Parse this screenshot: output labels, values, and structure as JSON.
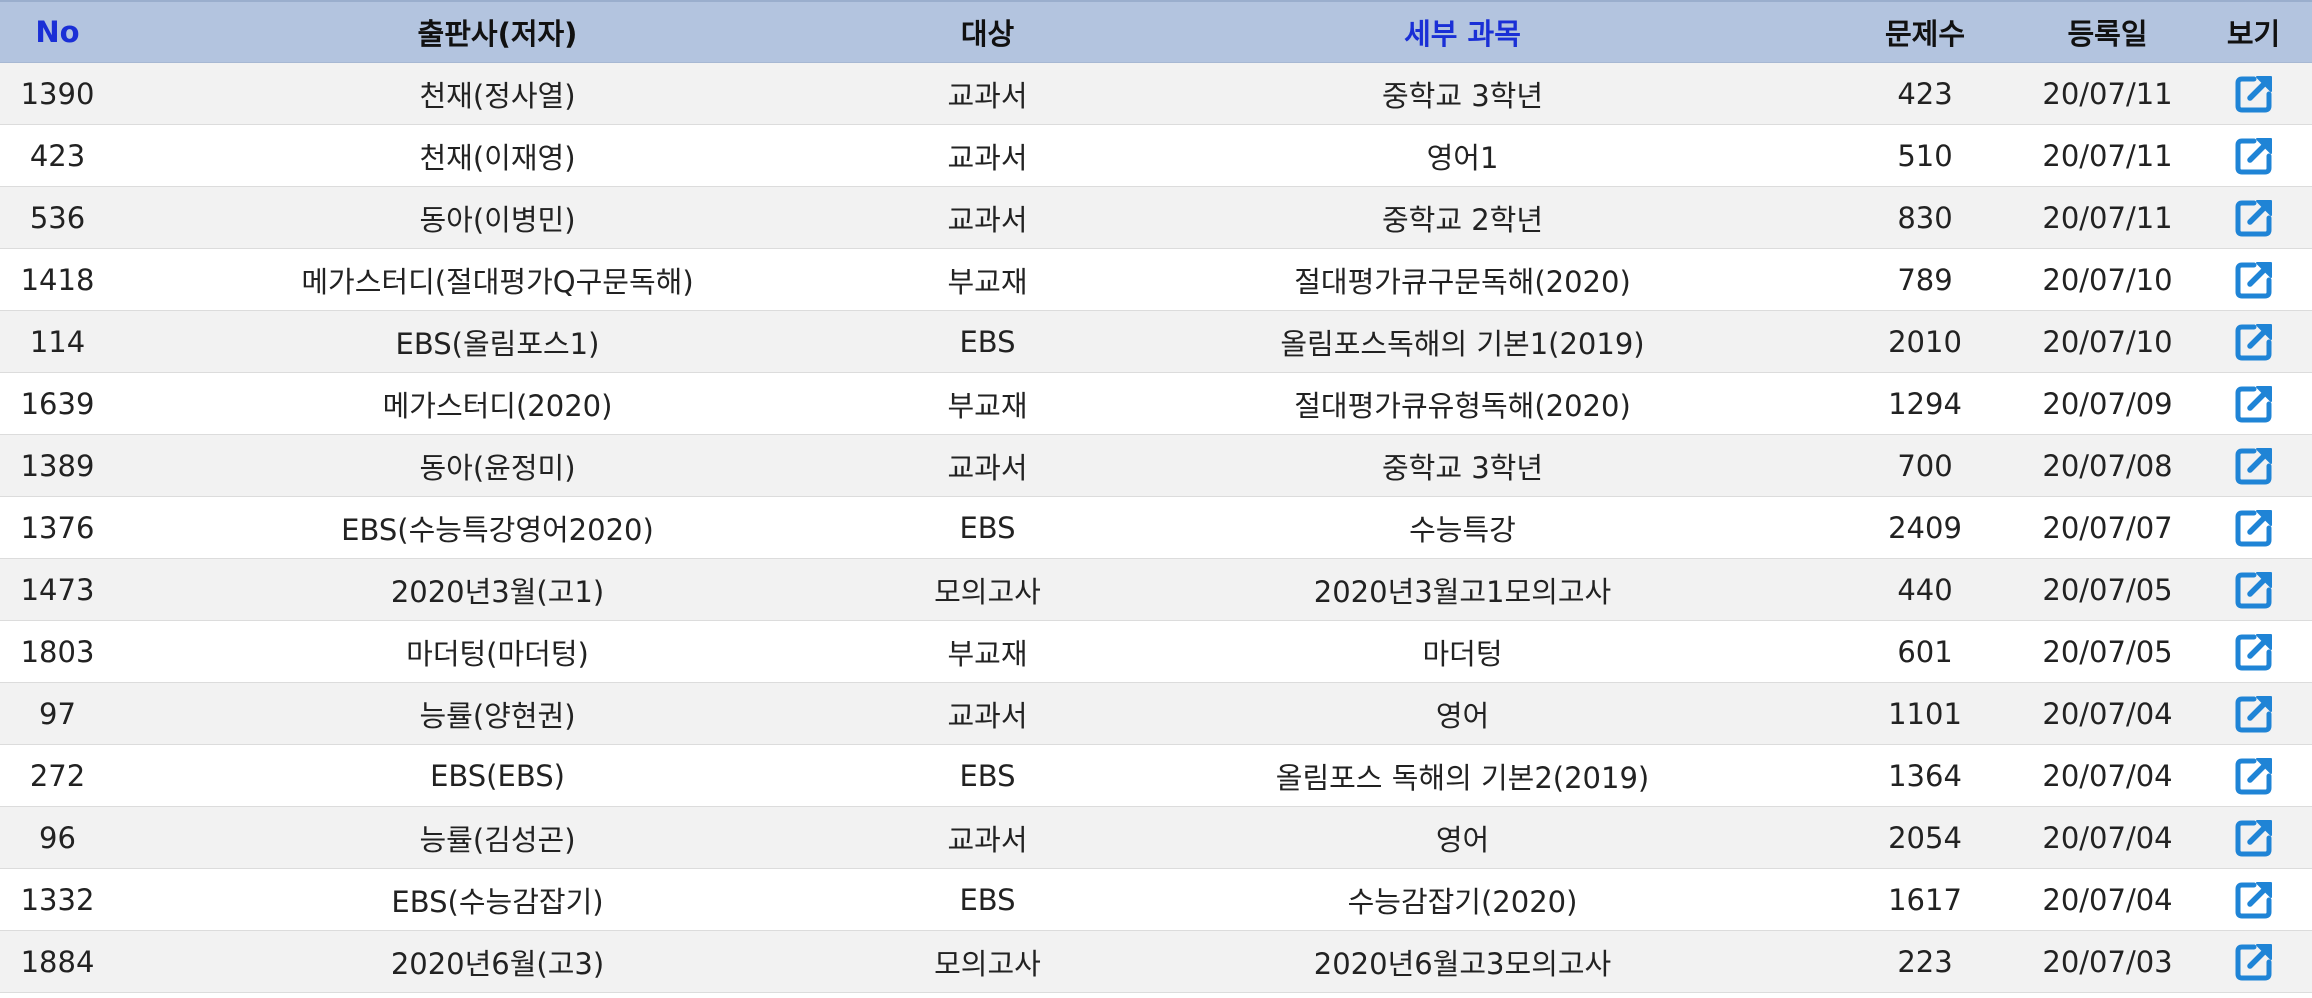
{
  "colors": {
    "header_bg": "#b3c4df",
    "header_accent_text": "#1a2fd6",
    "row_odd_bg": "#f2f2f2",
    "row_even_bg": "#ffffff",
    "icon_color": "#1f84d6"
  },
  "table": {
    "headers": {
      "no": "No",
      "publisher": "출판사(저자)",
      "target": "대상",
      "subject": "세부 과목",
      "count": "문제수",
      "date": "등록일",
      "view": "보기"
    },
    "view_icon": "external-link-icon",
    "rows": [
      {
        "no": "1390",
        "publisher": "천재(정사열)",
        "target": "교과서",
        "subject": "중학교 3학년",
        "count": "423",
        "date": "20/07/11"
      },
      {
        "no": "423",
        "publisher": "천재(이재영)",
        "target": "교과서",
        "subject": "영어1",
        "count": "510",
        "date": "20/07/11"
      },
      {
        "no": "536",
        "publisher": "동아(이병민)",
        "target": "교과서",
        "subject": "중학교 2학년",
        "count": "830",
        "date": "20/07/11"
      },
      {
        "no": "1418",
        "publisher": "메가스터디(절대평가Q구문독해)",
        "target": "부교재",
        "subject": "절대평가큐구문독해(2020)",
        "count": "789",
        "date": "20/07/10"
      },
      {
        "no": "114",
        "publisher": "EBS(올림포스1)",
        "target": "EBS",
        "subject": "올림포스독해의 기본1(2019)",
        "count": "2010",
        "date": "20/07/10"
      },
      {
        "no": "1639",
        "publisher": "메가스터디(2020)",
        "target": "부교재",
        "subject": "절대평가큐유형독해(2020)",
        "count": "1294",
        "date": "20/07/09"
      },
      {
        "no": "1389",
        "publisher": "동아(윤정미)",
        "target": "교과서",
        "subject": "중학교 3학년",
        "count": "700",
        "date": "20/07/08"
      },
      {
        "no": "1376",
        "publisher": "EBS(수능특강영어2020)",
        "target": "EBS",
        "subject": "수능특강",
        "count": "2409",
        "date": "20/07/07"
      },
      {
        "no": "1473",
        "publisher": "2020년3월(고1)",
        "target": "모의고사",
        "subject": "2020년3월고1모의고사",
        "count": "440",
        "date": "20/07/05"
      },
      {
        "no": "1803",
        "publisher": "마더텅(마더텅)",
        "target": "부교재",
        "subject": "마더텅",
        "count": "601",
        "date": "20/07/05"
      },
      {
        "no": "97",
        "publisher": "능률(양현권)",
        "target": "교과서",
        "subject": "영어",
        "count": "1101",
        "date": "20/07/04"
      },
      {
        "no": "272",
        "publisher": "EBS(EBS)",
        "target": "EBS",
        "subject": "올림포스 독해의 기본2(2019)",
        "count": "1364",
        "date": "20/07/04"
      },
      {
        "no": "96",
        "publisher": "능률(김성곤)",
        "target": "교과서",
        "subject": "영어",
        "count": "2054",
        "date": "20/07/04"
      },
      {
        "no": "1332",
        "publisher": "EBS(수능감잡기)",
        "target": "EBS",
        "subject": "수능감잡기(2020)",
        "count": "1617",
        "date": "20/07/04"
      },
      {
        "no": "1884",
        "publisher": "2020년6월(고3)",
        "target": "모의고사",
        "subject": "2020년6월고3모의고사",
        "count": "223",
        "date": "20/07/03"
      }
    ]
  }
}
